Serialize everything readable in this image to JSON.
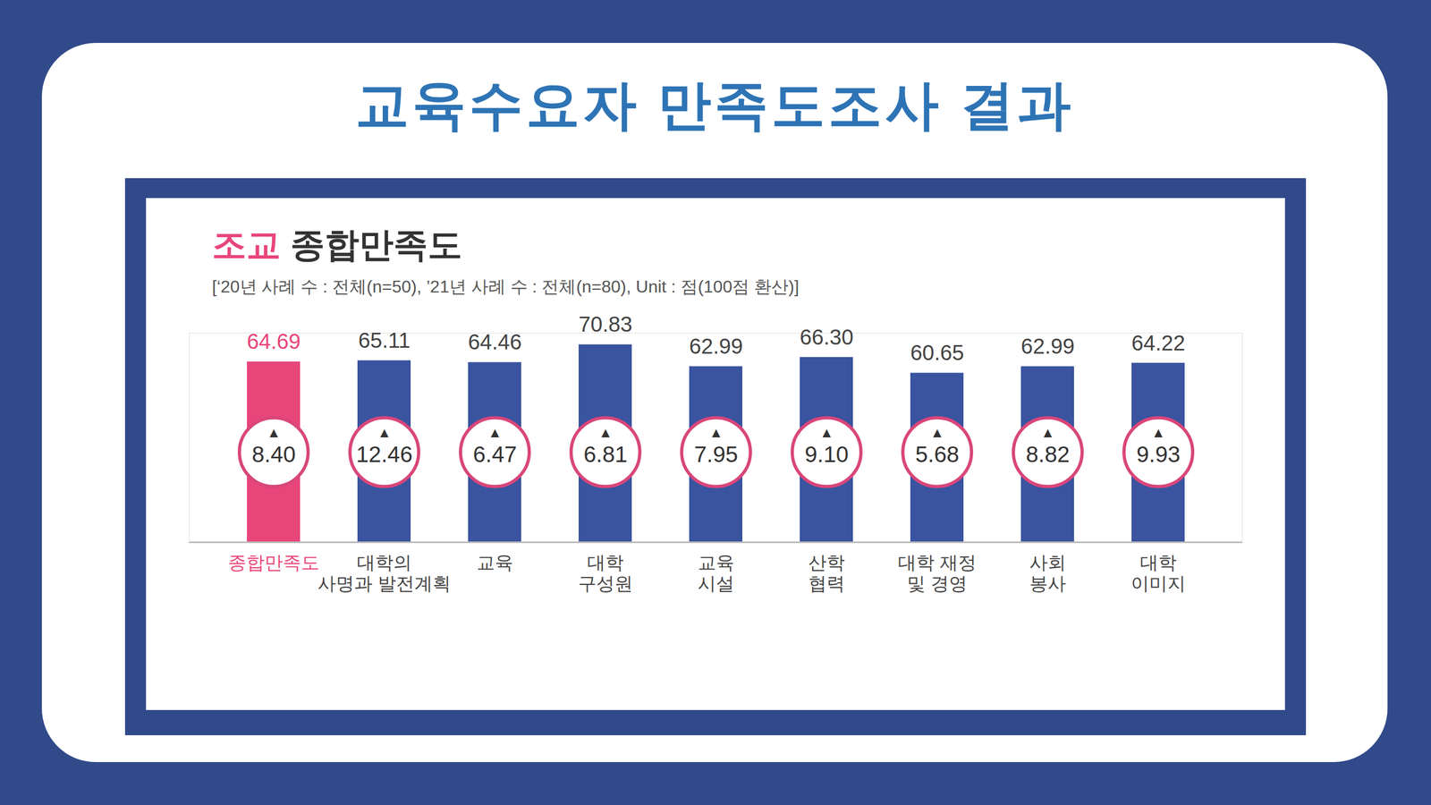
{
  "heading": "교육수요자 만족도조사 결과",
  "chart_data": {
    "type": "bar",
    "title": "조교 종합만족도",
    "subtitle": "[‘20년 사례 수 : 전체(n=50), ’21년 사례 수 : 전체(n=80), Unit : 점(100점 환산)]",
    "categories": [
      "종합만족도",
      "대학의\n사명과 발전계획",
      "교육",
      "대학\n구성원",
      "교육\n시설",
      "산학\n협력",
      "대학 재정\n및 경영",
      "사회\n봉사",
      "대학\n이미지"
    ],
    "values": [
      64.69,
      65.11,
      64.46,
      70.83,
      62.99,
      66.3,
      60.65,
      62.99,
      64.22
    ],
    "value_labels": [
      "64.69",
      "65.11",
      "64.46",
      "70.83",
      "62.99",
      "66.30",
      "60.65",
      "62.99",
      "64.22"
    ],
    "changes": [
      8.4,
      12.46,
      6.47,
      6.81,
      7.95,
      9.1,
      5.68,
      8.82,
      9.93
    ],
    "change_labels": [
      "8.40",
      "12.46",
      "6.47",
      "6.81",
      "7.95",
      "9.10",
      "5.68",
      "8.82",
      "9.93"
    ],
    "increase_symbol": "▲",
    "colors": [
      "#e8467a",
      "#3a54a0",
      "#3a54a0",
      "#3a54a0",
      "#3a54a0",
      "#3a54a0",
      "#3a54a0",
      "#3a54a0",
      "#3a54a0"
    ],
    "ylim": [
      0,
      75
    ],
    "yticks": [],
    "grid": false,
    "data_labels": true,
    "tick_labels": "x"
  }
}
